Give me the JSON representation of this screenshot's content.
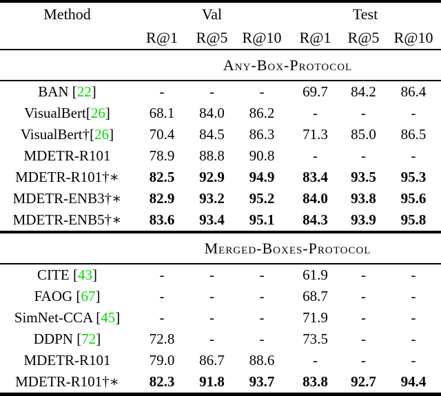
{
  "colors": {
    "citation_green": "#00dd00",
    "text": "#000000",
    "background": "#ffffff"
  },
  "header": {
    "method": "Method",
    "groups": [
      {
        "label": "Val"
      },
      {
        "label": "Test"
      }
    ],
    "metrics": [
      "R@1",
      "R@5",
      "R@10",
      "R@1",
      "R@5",
      "R@10"
    ]
  },
  "sections": [
    {
      "title": "Any-Box-Protocol",
      "rows": [
        {
          "method_pre": "BAN [",
          "cite": "22",
          "method_post": "]",
          "bold": false,
          "values": [
            "-",
            "-",
            "-",
            "69.7",
            "84.2",
            "86.4"
          ]
        },
        {
          "method_pre": "VisualBert[",
          "cite": "26",
          "method_post": "]",
          "bold": false,
          "values": [
            "68.1",
            "84.0",
            "86.2",
            "-",
            "-",
            "-"
          ]
        },
        {
          "method_pre": "VisualBert†[",
          "cite": "26",
          "method_post": "]",
          "bold": false,
          "values": [
            "70.4",
            "84.5",
            "86.3",
            "71.3",
            "85.0",
            "86.5"
          ]
        },
        {
          "method_pre": "MDETR-R101",
          "cite": "",
          "method_post": "",
          "bold": false,
          "values": [
            "78.9",
            "88.8",
            "90.8",
            "-",
            "-",
            "-"
          ]
        },
        {
          "method_pre": "MDETR-R101†∗",
          "cite": "",
          "method_post": "",
          "bold": true,
          "values": [
            "82.5",
            "92.9",
            "94.9",
            "83.4",
            "93.5",
            "95.3"
          ]
        },
        {
          "method_pre": "MDETR-ENB3†∗",
          "cite": "",
          "method_post": "",
          "bold": true,
          "values": [
            "82.9",
            "93.2",
            "95.2",
            "84.0",
            "93.8",
            "95.6"
          ]
        },
        {
          "method_pre": "MDETR-ENB5†∗",
          "cite": "",
          "method_post": "",
          "bold": true,
          "values": [
            "83.6",
            "93.4",
            "95.1",
            "84.3",
            "93.9",
            "95.8"
          ]
        }
      ]
    },
    {
      "title": "Merged-Boxes-Protocol",
      "rows": [
        {
          "method_pre": "CITE [",
          "cite": "43",
          "method_post": "]",
          "bold": false,
          "values": [
            "-",
            "-",
            "-",
            "61.9",
            "-",
            "-"
          ]
        },
        {
          "method_pre": "FAOG [",
          "cite": "67",
          "method_post": "]",
          "bold": false,
          "values": [
            "-",
            "-",
            "-",
            "68.7",
            "-",
            "-"
          ]
        },
        {
          "method_pre": "SimNet-CCA [",
          "cite": "45",
          "method_post": "]",
          "bold": false,
          "values": [
            "-",
            "-",
            "-",
            "71.9",
            "-",
            "-"
          ]
        },
        {
          "method_pre": "DDPN [",
          "cite": "72",
          "method_post": "]",
          "bold": false,
          "values": [
            "72.8",
            "-",
            "-",
            "73.5",
            "-",
            "-"
          ]
        },
        {
          "method_pre": "MDETR-R101",
          "cite": "",
          "method_post": "",
          "bold": false,
          "values": [
            "79.0",
            "86.7",
            "88.6",
            "-",
            "-",
            "-"
          ]
        },
        {
          "method_pre": "MDETR-R101†∗",
          "cite": "",
          "method_post": "",
          "bold": true,
          "values": [
            "82.3",
            "91.8",
            "93.7",
            "83.8",
            "92.7",
            "94.4"
          ]
        }
      ]
    }
  ]
}
